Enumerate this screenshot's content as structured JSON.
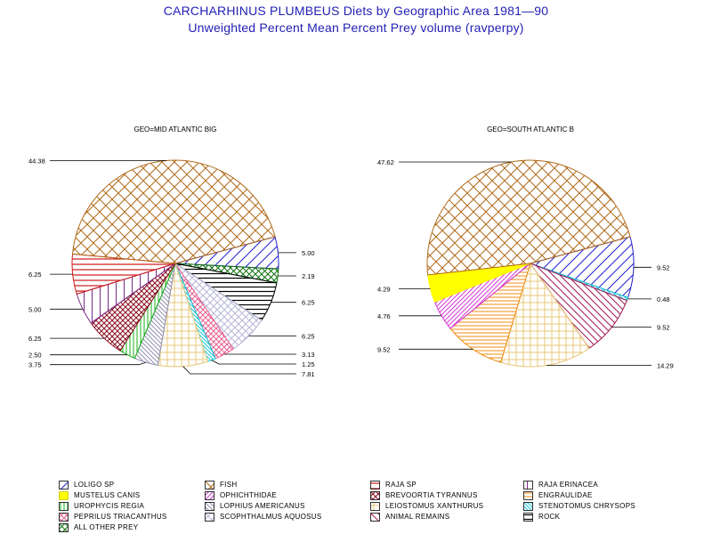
{
  "title": "CARCHARHINUS PLUMBEUS Diets by Geographic Area 1981—90",
  "subtitle": "Unweighted Percent Mean Percent Prey  volume (ravperpy)",
  "chart_data": [
    {
      "type": "pie",
      "title": "GEO=MID ATLANTIC BIG",
      "slices": [
        {
          "category": "LOLIGO SP",
          "value": 5.0
        },
        {
          "category": "ALL OTHER PREY",
          "value": 2.19
        },
        {
          "category": "ROCK",
          "value": 6.25
        },
        {
          "category": "SCOPHTHALMUS AQUOSUS",
          "value": 6.25
        },
        {
          "category": "PEPRILUS TRIACANTHUS",
          "value": 3.13
        },
        {
          "category": "STENOTOMUS CHRYSOPS",
          "value": 1.25
        },
        {
          "category": "LEIOSTOMUS XANTHURUS",
          "value": 7.81
        },
        {
          "category": "LOPHIUS AMERICANUS",
          "value": 3.75
        },
        {
          "category": "UROPHYCIS REGIA",
          "value": 2.5
        },
        {
          "category": "BREVOORTIA TYRANNUS",
          "value": 6.25
        },
        {
          "category": "RAJA ERINACEA",
          "value": 5.0
        },
        {
          "category": "RAJA SP",
          "value": 6.25
        },
        {
          "category": "FISH",
          "value": 44.38
        }
      ]
    },
    {
      "type": "pie",
      "title": "GEO=SOUTH ATLANTIC B",
      "slices": [
        {
          "category": "LOLIGO SP",
          "value": 9.52
        },
        {
          "category": "STENOTOMUS CHRYSOPS",
          "value": 0.48
        },
        {
          "category": "ANIMAL REMAINS",
          "value": 9.52
        },
        {
          "category": "LEIOSTOMUS XANTHURUS",
          "value": 14.29
        },
        {
          "category": "ENGRAULIDAE",
          "value": 9.52
        },
        {
          "category": "OPHICHTHIDAE",
          "value": 4.76
        },
        {
          "category": "MUSTELUS CANIS",
          "value": 4.29
        },
        {
          "category": "FISH",
          "value": 47.62
        }
      ]
    }
  ],
  "legend": [
    {
      "label": "LOLIGO SP",
      "key": "loligo"
    },
    {
      "label": "FISH",
      "key": "fish"
    },
    {
      "label": "RAJA SP",
      "key": "raja"
    },
    {
      "label": "RAJA ERINACEA",
      "key": "erinacea"
    },
    {
      "label": "MUSTELUS CANIS",
      "key": "mustelus"
    },
    {
      "label": "OPHICHTHIDAE",
      "key": "ophichthidae"
    },
    {
      "label": "BREVOORTIA TYRANNUS",
      "key": "brevoortia"
    },
    {
      "label": "ENGRAULIDAE",
      "key": "engraulidae"
    },
    {
      "label": "UROPHYCIS REGIA",
      "key": "urophycis"
    },
    {
      "label": "LOPHIUS AMERICANUS",
      "key": "lophius"
    },
    {
      "label": "LEIOSTOMUS XANTHURUS",
      "key": "leiostomus"
    },
    {
      "label": "STENOTOMUS CHRYSOPS",
      "key": "stenotomus"
    },
    {
      "label": "PEPRILUS TRIACANTHUS",
      "key": "peprilus"
    },
    {
      "label": "SCOPHTHALMUS AQUOSUS",
      "key": "scophthalmus"
    },
    {
      "label": "ANIMAL REMAINS",
      "key": "animal"
    },
    {
      "label": "ROCK",
      "key": "rock"
    },
    {
      "label": "ALL OTHER PREY",
      "key": "other"
    }
  ],
  "colors": {
    "title": "#1f1fb4",
    "loligo": "#2020d0",
    "fish": "#b06a1a",
    "raja": "#d01818",
    "erinacea": "#7a2a8a",
    "mustelus": "#ffff00",
    "ophichthidae": "#d43ad4",
    "brevoortia": "#8a0f1f",
    "engraulidae": "#f08c10",
    "urophycis": "#1ab01a",
    "lophius": "#9090b0",
    "leiostomus": "#e8c878",
    "stenotomus": "#18c8d8",
    "peprilus": "#e86090",
    "scophthalmus": "#b8b8d8",
    "animal": "#a01850",
    "rock": "#000000",
    "other": "#107010"
  }
}
